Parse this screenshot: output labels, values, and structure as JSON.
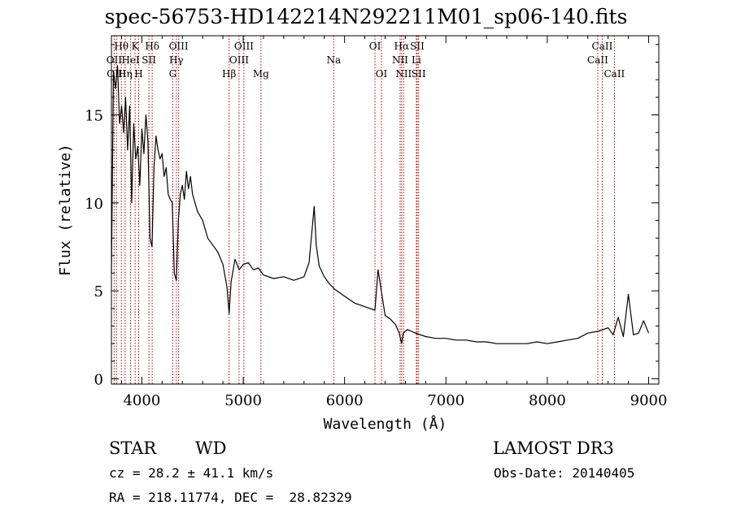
{
  "title": "spec-56753-HD142214N292211M01_sp06-140.fits",
  "info": {
    "class_label": "STAR",
    "subclass_label": "WD",
    "survey_label": "LAMOST DR3",
    "cz_text": "cz = 28.2 ± 41.1 km/s",
    "obs_date_text": "Obs-Date: 20140405",
    "coords_text": "RA = 218.11774, DEC =  28.82329"
  },
  "colors": {
    "spectrum": "#000000",
    "line_markers": "#c00000",
    "axes": "#000000"
  },
  "chart_data": {
    "type": "line",
    "title": "spec-56753-HD142214N292211M01_sp06-140.fits",
    "xlabel": "Wavelength (Å)",
    "ylabel": "Flux (relative)",
    "xlim": [
      3700,
      9100
    ],
    "ylim": [
      -0.3,
      19.5
    ],
    "xticks": [
      4000,
      5000,
      6000,
      7000,
      8000,
      9000
    ],
    "xtick_labels": [
      "4000",
      "5000",
      "6000",
      "7000",
      "8000",
      "9000"
    ],
    "yticks": [
      0,
      5,
      10,
      15
    ],
    "ytick_labels": [
      "0",
      "5",
      "10",
      "15"
    ],
    "grid": false,
    "series": [
      {
        "x": [
          3700,
          3720,
          3740,
          3760,
          3780,
          3800,
          3820,
          3840,
          3860,
          3880,
          3900,
          3920,
          3940,
          3960,
          3980,
          4000,
          4020,
          4040,
          4060,
          4080,
          4100,
          4120,
          4140,
          4160,
          4180,
          4200,
          4220,
          4240,
          4260,
          4280,
          4300,
          4320,
          4340,
          4360,
          4380,
          4400,
          4420,
          4440,
          4460,
          4480,
          4500,
          4550,
          4600,
          4650,
          4700,
          4750,
          4800,
          4840,
          4861,
          4880,
          4920,
          4960,
          5000,
          5050,
          5100,
          5150,
          5200,
          5300,
          5400,
          5500,
          5600,
          5650,
          5700,
          5720,
          5750,
          5800,
          5850,
          5900,
          6000,
          6100,
          6200,
          6300,
          6330,
          6400,
          6450,
          6500,
          6540,
          6563,
          6580,
          6620,
          6700,
          6800,
          6900,
          7000,
          7100,
          7200,
          7300,
          7400,
          7500,
          7600,
          7700,
          7800,
          7900,
          8000,
          8100,
          8200,
          8300,
          8400,
          8500,
          8600,
          8650,
          8700,
          8750,
          8800,
          8850,
          8900,
          8950,
          9000
        ],
        "y": [
          6.0,
          17.5,
          16.5,
          17.8,
          14.5,
          15.5,
          14.0,
          16.0,
          13.0,
          15.5,
          10.0,
          14.5,
          12.5,
          13.2,
          11.0,
          14.2,
          12.8,
          15.0,
          13.5,
          8.0,
          7.5,
          12.0,
          13.8,
          13.0,
          12.5,
          12.8,
          11.5,
          12.0,
          10.5,
          10.2,
          10.0,
          6.0,
          5.6,
          9.0,
          10.5,
          11.0,
          10.2,
          11.8,
          10.8,
          11.5,
          10.5,
          9.5,
          9.0,
          8.0,
          7.6,
          7.2,
          6.5,
          5.2,
          3.7,
          5.5,
          6.8,
          6.2,
          6.5,
          6.6,
          6.2,
          6.3,
          5.9,
          5.7,
          5.8,
          5.6,
          5.8,
          6.6,
          9.8,
          7.6,
          6.4,
          5.8,
          5.4,
          5.1,
          4.7,
          4.3,
          4.1,
          3.9,
          6.2,
          3.6,
          3.4,
          3.1,
          2.6,
          2.0,
          2.6,
          2.8,
          2.6,
          2.4,
          2.3,
          2.3,
          2.2,
          2.2,
          2.1,
          2.1,
          2.0,
          2.0,
          2.0,
          2.0,
          2.1,
          2.0,
          2.1,
          2.2,
          2.3,
          2.6,
          2.7,
          2.9,
          2.5,
          3.5,
          2.4,
          4.8,
          2.5,
          2.6,
          3.3,
          2.6
        ]
      }
    ],
    "line_labels": [
      {
        "label": "Hθ",
        "x": 3798,
        "row": 0
      },
      {
        "label": "K",
        "x": 3934,
        "row": 0
      },
      {
        "label": "Hδ",
        "x": 4102,
        "row": 0
      },
      {
        "label": "OIII",
        "x": 4363,
        "row": 0
      },
      {
        "label": "OIII",
        "x": 5007,
        "row": 0
      },
      {
        "label": "OI",
        "x": 6300,
        "row": 0
      },
      {
        "label": "Hα",
        "x": 6563,
        "row": 0
      },
      {
        "label": "SII",
        "x": 6717,
        "row": 0
      },
      {
        "label": "CaII",
        "x": 8542,
        "row": 0
      },
      {
        "label": "OII",
        "x": 3727,
        "row": 1
      },
      {
        "label": "HeI",
        "x": 3889,
        "row": 1
      },
      {
        "label": "SII",
        "x": 4070,
        "row": 1
      },
      {
        "label": "Hγ",
        "x": 4340,
        "row": 1
      },
      {
        "label": "OIII",
        "x": 4959,
        "row": 1
      },
      {
        "label": "Na",
        "x": 5893,
        "row": 1
      },
      {
        "label": "NII",
        "x": 6548,
        "row": 1
      },
      {
        "label": "Li",
        "x": 6708,
        "row": 1
      },
      {
        "label": "CaII",
        "x": 8498,
        "row": 1
      },
      {
        "label": "OIII",
        "x": 3750,
        "row": 2
      },
      {
        "label": "Hη",
        "x": 3835,
        "row": 2
      },
      {
        "label": "H",
        "x": 3969,
        "row": 2
      },
      {
        "label": "G",
        "x": 4305,
        "row": 2
      },
      {
        "label": "Hβ",
        "x": 4861,
        "row": 2
      },
      {
        "label": "Mg",
        "x": 5175,
        "row": 2
      },
      {
        "label": "OI",
        "x": 6364,
        "row": 2
      },
      {
        "label": "NII",
        "x": 6583,
        "row": 2
      },
      {
        "label": "SII",
        "x": 6731,
        "row": 2
      },
      {
        "label": "CaII",
        "x": 8662,
        "row": 2
      }
    ]
  }
}
